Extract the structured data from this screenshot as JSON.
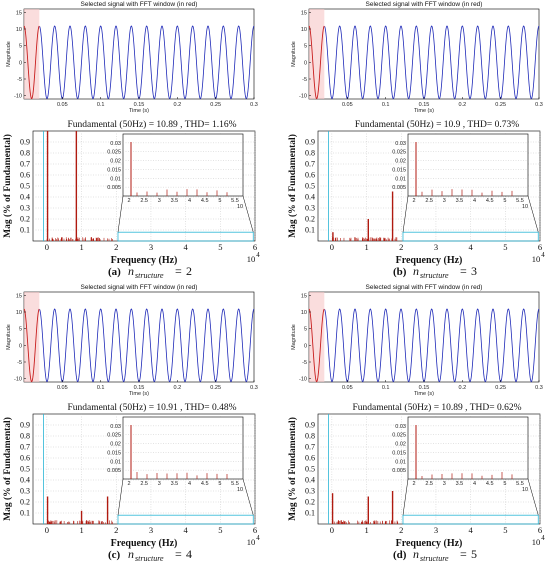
{
  "colors": {
    "signal": "#1f2ab8",
    "window": "#c81e1e",
    "window_shade": "#f6c6c6",
    "bars": "#b01a10",
    "cyan": "#29b6d6"
  },
  "chart_data": [
    {
      "panel": "(a)",
      "caption_value": "2",
      "time_plot": {
        "type": "line",
        "title": "Selected signal with FFT window (in red)",
        "xlabel": "Time (s)",
        "ylabel": "Magnitude",
        "xlim": [
          0,
          0.3
        ],
        "ylim": [
          -11,
          16
        ],
        "xticks": [
          "0.05",
          "0.1",
          "0.15",
          "0.2",
          "0.25",
          "0.3"
        ],
        "yticks": [
          "15",
          "10",
          "5",
          "0",
          "-5",
          "-10"
        ],
        "series": [
          {
            "frequency_hz": 50,
            "amplitude": 10.9
          }
        ]
      },
      "fft_plot": {
        "type": "bar",
        "title": "Fundamental (50Hz) = 10.89 , THD= 1.16%",
        "xlabel": "Frequency (Hz)",
        "ylabel": "Mag (% of Fundamental)",
        "xticks": [
          "0",
          "1",
          "2",
          "3",
          "4",
          "5",
          "6"
        ],
        "yticks": [
          "0.1",
          "0.2",
          "0.3",
          "0.4",
          "0.5",
          "0.6",
          "0.7",
          "0.8",
          "0.9"
        ],
        "x_exponent": "10",
        "x_exponent_power": "4",
        "ylim": [
          0,
          1
        ],
        "bars": [
          {
            "x": 0.02,
            "y": 1.0
          },
          {
            "x": 0.85,
            "y": 1.0
          }
        ],
        "inset": {
          "yticks": [
            "0.03",
            "0.025",
            "0.02",
            "0.015",
            "0.01",
            "0.005"
          ],
          "xticks": [
            "2",
            "2.5",
            "3",
            "3.5",
            "4",
            "4.5",
            "5",
            "5.5"
          ],
          "x_exponent": "10"
        }
      }
    },
    {
      "panel": "(b)",
      "caption_value": "3",
      "time_plot": {
        "type": "line",
        "title": "Selected signal with FFT window (in red)",
        "xlabel": "Time (s)",
        "ylabel": "Magnitude",
        "xlim": [
          0,
          0.3
        ],
        "ylim": [
          -11,
          16
        ],
        "xticks": [
          "0.05",
          "0.1",
          "0.15",
          "0.2",
          "0.25",
          "0.3"
        ],
        "yticks": [
          "15",
          "10",
          "5",
          "0",
          "-5",
          "-10"
        ],
        "series": [
          {
            "frequency_hz": 50,
            "amplitude": 10.9
          }
        ]
      },
      "fft_plot": {
        "type": "bar",
        "title": "Fundamental (50Hz) = 10.9 , THD= 0.73%",
        "xlabel": "Frequency (Hz)",
        "ylabel": "Mag (% of Fundamental)",
        "xticks": [
          "0",
          "1",
          "2",
          "3",
          "4",
          "5",
          "6"
        ],
        "yticks": [
          "0.1",
          "0.2",
          "0.3",
          "0.4",
          "0.5",
          "0.6",
          "0.7",
          "0.8",
          "0.9"
        ],
        "x_exponent": "10",
        "x_exponent_power": "4",
        "ylim": [
          0,
          1
        ],
        "bars": [
          {
            "x": 0.03,
            "y": 0.08
          },
          {
            "x": 1.05,
            "y": 0.2
          },
          {
            "x": 1.75,
            "y": 0.45
          }
        ],
        "inset": {
          "yticks": [
            "0.03",
            "0.025",
            "0.02",
            "0.015",
            "0.01",
            "0.005"
          ],
          "xticks": [
            "2",
            "2.5",
            "3",
            "3.5",
            "4",
            "4.5",
            "5",
            "5.5"
          ],
          "x_exponent": "10"
        }
      }
    },
    {
      "panel": "(c)",
      "caption_value": "4",
      "time_plot": {
        "type": "line",
        "title": "Selected signal with FFT window (in red)",
        "xlabel": "Time (s)",
        "ylabel": "Magnitude",
        "xlim": [
          0,
          0.3
        ],
        "ylim": [
          -11,
          16
        ],
        "xticks": [
          "0.05",
          "0.1",
          "0.15",
          "0.2",
          "0.25",
          "0.3"
        ],
        "yticks": [
          "15",
          "10",
          "5",
          "0",
          "-5",
          "-10"
        ],
        "series": [
          {
            "frequency_hz": 50,
            "amplitude": 10.9
          }
        ]
      },
      "fft_plot": {
        "type": "bar",
        "title": "Fundamental (50Hz) = 10.91 , THD= 0.48%",
        "xlabel": "Frequency (Hz)",
        "ylabel": "Mag (% of Fundamental)",
        "xticks": [
          "0",
          "1",
          "2",
          "3",
          "4",
          "5",
          "6"
        ],
        "yticks": [
          "0.1",
          "0.2",
          "0.3",
          "0.4",
          "0.5",
          "0.6",
          "0.7",
          "0.8",
          "0.9"
        ],
        "x_exponent": "10",
        "x_exponent_power": "4",
        "ylim": [
          0,
          1
        ],
        "bars": [
          {
            "x": 0.02,
            "y": 0.25
          },
          {
            "x": 1.0,
            "y": 0.12
          },
          {
            "x": 1.75,
            "y": 0.25
          }
        ],
        "inset": {
          "yticks": [
            "0.03",
            "0.025",
            "0.02",
            "0.015",
            "0.01",
            "0.005"
          ],
          "xticks": [
            "2",
            "2.5",
            "3",
            "3.5",
            "4",
            "4.5",
            "5",
            "5.5"
          ],
          "x_exponent": "10"
        }
      }
    },
    {
      "panel": "(d)",
      "caption_value": "5",
      "time_plot": {
        "type": "line",
        "title": "Selected signal with FFT window (in red)",
        "xlabel": "Time (s)",
        "ylabel": "Magnitude",
        "xlim": [
          0,
          0.3
        ],
        "ylim": [
          -11,
          16
        ],
        "xticks": [
          "0.05",
          "0.1",
          "0.15",
          "0.2",
          "0.25",
          "0.3"
        ],
        "yticks": [
          "15",
          "10",
          "5",
          "0",
          "-5",
          "-10"
        ],
        "series": [
          {
            "frequency_hz": 50,
            "amplitude": 10.9
          }
        ]
      },
      "fft_plot": {
        "type": "bar",
        "title": "Fundamental (50Hz) = 10.89 , THD= 0.62%",
        "xlabel": "Frequency (Hz)",
        "ylabel": "Mag (% of Fundamental)",
        "xticks": [
          "0",
          "1",
          "2",
          "3",
          "4",
          "5",
          "6"
        ],
        "yticks": [
          "0.1",
          "0.2",
          "0.3",
          "0.4",
          "0.5",
          "0.6",
          "0.7",
          "0.8",
          "0.9"
        ],
        "x_exponent": "10",
        "x_exponent_power": "4",
        "ylim": [
          0,
          1
        ],
        "bars": [
          {
            "x": 0.02,
            "y": 0.28
          },
          {
            "x": 1.05,
            "y": 0.25
          },
          {
            "x": 1.75,
            "y": 0.3
          }
        ],
        "inset": {
          "yticks": [
            "0.03",
            "0.025",
            "0.02",
            "0.015",
            "0.01",
            "0.005"
          ],
          "xticks": [
            "2",
            "2.5",
            "3",
            "3.5",
            "4",
            "4.5",
            "5",
            "5.5"
          ],
          "x_exponent": "10"
        }
      }
    }
  ],
  "captions": {
    "variable": "n",
    "subscript": "structure",
    "equals": "="
  }
}
